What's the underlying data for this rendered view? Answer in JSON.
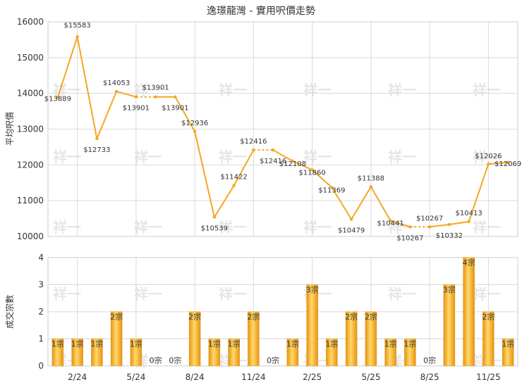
{
  "chart_data": [
    {
      "type": "line",
      "title": "逸璟龍灣 - 實用呎價走勢",
      "ylabel": "平均呎價",
      "ylim": [
        10000,
        16000
      ],
      "yticks": [
        "16000",
        "15000",
        "14000",
        "13000",
        "12000",
        "11000",
        "10000"
      ],
      "xticks": [
        "2/24",
        "5/24",
        "8/24",
        "11/24",
        "2/25",
        "5/25",
        "8/25",
        "11/25"
      ],
      "grid": true,
      "color": "#f5a623",
      "series": [
        {
          "values": [
            13889,
            15583,
            12733,
            14053,
            13901,
            13901,
            13901,
            12936,
            10539,
            11422,
            12416,
            12416,
            12108,
            11860,
            11369,
            10479,
            11388,
            10441,
            10267,
            10267,
            10332,
            10413,
            12026,
            12069
          ],
          "labels": [
            "$13889",
            "$15583",
            "$12733",
            "$14053",
            "$13901",
            "$13901",
            "$13901",
            "$12936",
            "$10539",
            "$11422",
            "$12416",
            "$12416",
            "$12108",
            "$11860",
            "$11369",
            "$10479",
            "$11388",
            "$10441",
            "$10267",
            "$10267",
            "$10332",
            "$10413",
            "$12026",
            "$12069"
          ],
          "dashed_segments": [
            [
              4,
              5
            ],
            [
              10,
              11
            ],
            [
              18,
              19
            ]
          ]
        }
      ]
    },
    {
      "type": "bar",
      "ylabel": "成交宗數",
      "ylim": [
        0,
        4
      ],
      "yticks": [
        "4",
        "3",
        "2",
        "1",
        "0"
      ],
      "xticks": [
        "2/24",
        "5/24",
        "8/24",
        "11/24",
        "2/25",
        "5/25",
        "8/25",
        "11/25"
      ],
      "grid": true,
      "color": "#f5a623",
      "series": [
        {
          "values": [
            1,
            1,
            1,
            2,
            1,
            0,
            0,
            2,
            1,
            1,
            2,
            0,
            1,
            3,
            1,
            2,
            2,
            1,
            1,
            0,
            3,
            4,
            2,
            1
          ],
          "labels": [
            "1宗",
            "1宗",
            "1宗",
            "2宗",
            "1宗",
            "0宗",
            "0宗",
            "2宗",
            "1宗",
            "1宗",
            "2宗",
            "0宗",
            "1宗",
            "3宗",
            "1宗",
            "2宗",
            "2宗",
            "1宗",
            "1宗",
            "0宗",
            "3宗",
            "4宗",
            "2宗",
            "1宗"
          ]
        }
      ]
    }
  ]
}
